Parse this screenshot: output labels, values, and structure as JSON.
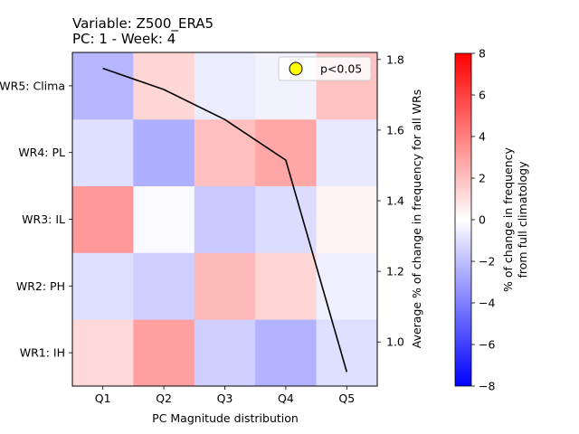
{
  "title_line1": "Variable: Z500_ERA5",
  "title_line2": "PC: 1 - Week: 4",
  "chart_data": {
    "type": "heatmap",
    "xlabel": "PC Magnitude distribution",
    "x_categories": [
      "Q1",
      "Q2",
      "Q3",
      "Q4",
      "Q5"
    ],
    "y_categories_bottom_to_top": [
      "WR1: IH",
      "WR2: PH",
      "WR3: IL",
      "WR4: PL",
      "WR5: Clima"
    ],
    "y_tick_labels_visible": [
      "WR1: IH",
      "WR2: PH",
      "WR3: IL",
      "WR4: PL",
      "WR5: Clima"
    ],
    "values_rows_bottom_to_top": [
      [
        1.2,
        3.0,
        -1.5,
        -2.4,
        -1.0
      ],
      [
        -1.0,
        -1.5,
        2.2,
        1.3,
        -0.5
      ],
      [
        3.2,
        -0.2,
        -1.7,
        -1.1,
        0.4
      ],
      [
        -1.0,
        -2.5,
        2.0,
        2.8,
        -0.7
      ],
      [
        -2.3,
        1.3,
        -0.6,
        -0.4,
        1.9
      ]
    ],
    "colorbar": {
      "min": -8,
      "max": 8,
      "ticks": [
        "−8",
        "−6",
        "−4",
        "−2",
        "0",
        "2",
        "4",
        "6",
        "8"
      ],
      "cmap": "bwr",
      "label_line1": "% of change in frequency",
      "label_line2": "from full climatology"
    },
    "line": {
      "ylabel": "Average % of change in frequency for all WRs",
      "ylim": [
        0.875,
        1.82
      ],
      "yticks": [
        "1.0",
        "1.2",
        "1.4",
        "1.6",
        "1.8"
      ],
      "yticks_values": [
        1.0,
        1.2,
        1.4,
        1.6,
        1.8
      ],
      "values": [
        1.775,
        1.715,
        1.63,
        1.515,
        0.915
      ],
      "color": "#000000"
    },
    "legend": {
      "label": "p<0.05",
      "marker_color": "#ffff00",
      "position": "upper right"
    }
  }
}
